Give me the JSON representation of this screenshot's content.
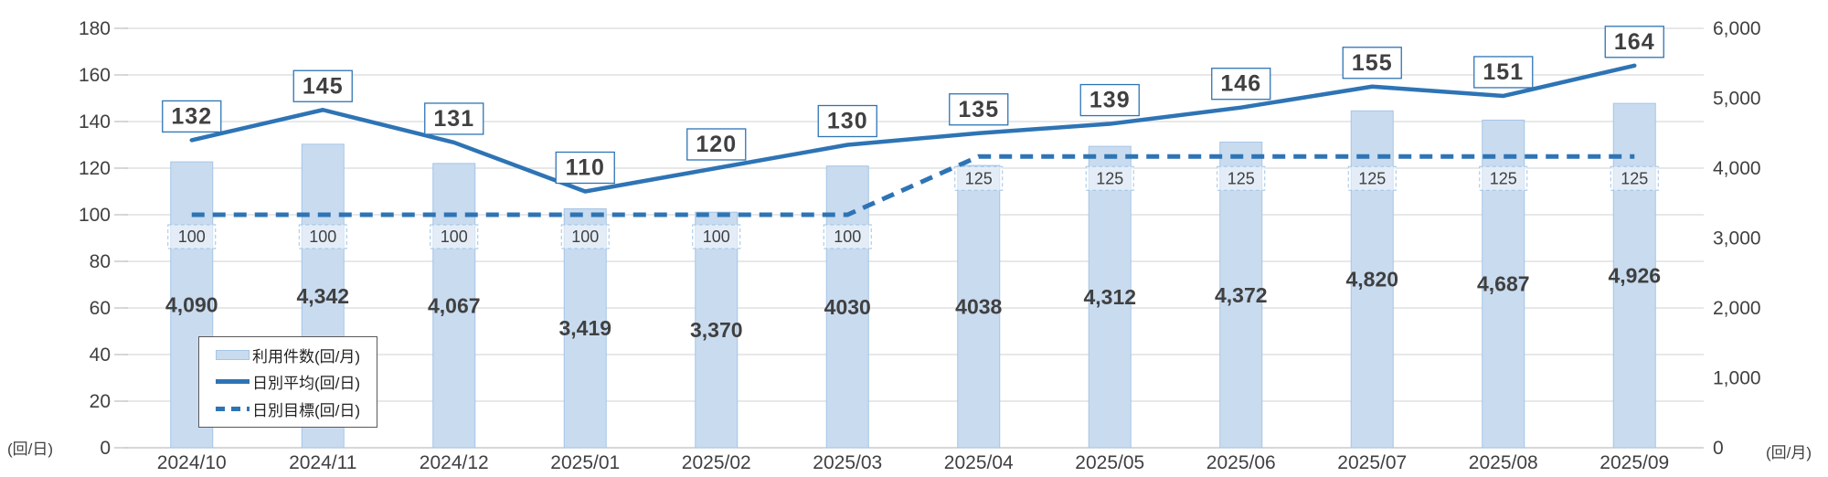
{
  "chart_data": {
    "type": "combo",
    "categories": [
      "2024/10",
      "2024/11",
      "2024/12",
      "2025/01",
      "2025/02",
      "2025/03",
      "2025/04",
      "2025/05",
      "2025/06",
      "2025/07",
      "2025/08",
      "2025/09"
    ],
    "series": [
      {
        "name": "利用件数(回/月)",
        "type": "bar",
        "axis": "right",
        "values": [
          4090,
          4342,
          4067,
          3419,
          3370,
          4030,
          4038,
          4312,
          4372,
          4820,
          4687,
          4926
        ],
        "labels": [
          "4,090",
          "4,342",
          "4,067",
          "3,419",
          "3,370",
          "4030",
          "4038",
          "4,312",
          "4,372",
          "4,820",
          "4,687",
          "4,926"
        ]
      },
      {
        "name": "日別平均(回/日)",
        "type": "line",
        "axis": "left",
        "values": [
          132,
          145,
          131,
          110,
          120,
          130,
          135,
          139,
          146,
          155,
          151,
          164
        ],
        "labels": [
          "132",
          "145",
          "131",
          "110",
          "120",
          "130",
          "135",
          "139",
          "146",
          "155",
          "151",
          "164"
        ]
      },
      {
        "name": "日別目標(回/日)",
        "type": "dashed-line",
        "axis": "left",
        "values": [
          100,
          100,
          100,
          100,
          100,
          100,
          125,
          125,
          125,
          125,
          125,
          125
        ],
        "labels": [
          "100",
          "100",
          "100",
          "100",
          "100",
          "100",
          "125",
          "125",
          "125",
          "125",
          "125",
          "125"
        ]
      }
    ],
    "left_axis": {
      "min": 0,
      "max": 180,
      "step": 20,
      "unit": "(回/日)",
      "ticks": [
        "180",
        "160",
        "140",
        "120",
        "100",
        "80",
        "60",
        "40",
        "20",
        "0"
      ]
    },
    "right_axis": {
      "min": 0,
      "max": 6000,
      "step": 1000,
      "unit": "(回/月)",
      "ticks": [
        "6,000",
        "5,000",
        "4,000",
        "3,000",
        "2,000",
        "1,000",
        "0"
      ]
    },
    "legend": [
      {
        "label": "利用件数(回/月)",
        "swatch": "bar"
      },
      {
        "label": "日別平均(回/日)",
        "swatch": "solid-line"
      },
      {
        "label": "日別目標(回/日)",
        "swatch": "dashed-line"
      }
    ],
    "colors": {
      "line": "#2e74b5",
      "bar_fill": "#c9dbef",
      "bar_border": "#a6c5e5",
      "grid": "#d9d9d9",
      "axis_line": "#bfbfbf",
      "text": "#404040",
      "avg_box_border": "#2e74b5",
      "target_box_border": "#9dc3e6"
    },
    "grid": true,
    "legend_position": "bottom-left-inside"
  }
}
